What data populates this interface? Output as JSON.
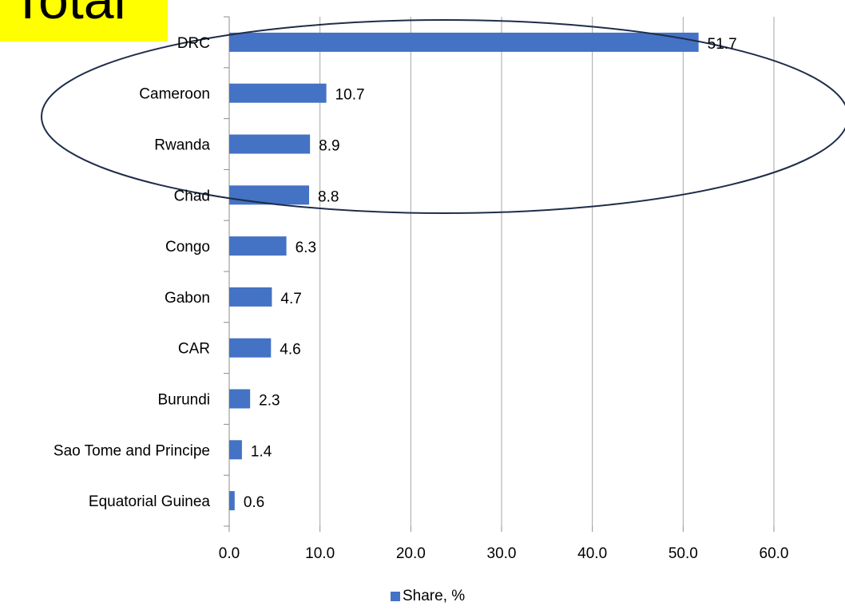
{
  "callout": {
    "text": "Total"
  },
  "chart_data": {
    "type": "bar",
    "orientation": "horizontal",
    "categories": [
      "DRC",
      "Cameroon",
      "Rwanda",
      "Chad",
      "Congo",
      "Gabon",
      "CAR",
      "Burundi",
      "Sao Tome and Principe",
      "Equatorial Guinea"
    ],
    "series": [
      {
        "name": "Share, %",
        "values": [
          51.7,
          10.7,
          8.9,
          8.8,
          6.3,
          4.7,
          4.6,
          2.3,
          1.4,
          0.6
        ]
      }
    ],
    "xlim": [
      0,
      60
    ],
    "xticks": [
      0,
      10,
      20,
      30,
      40,
      50,
      60
    ],
    "xtick_labels": [
      "0.0",
      "10.0",
      "20.0",
      "30.0",
      "40.0",
      "50.0",
      "60.0"
    ],
    "data_labels": [
      "51.7",
      "10.7",
      "8.9",
      "8.8",
      "6.3",
      "4.7",
      "4.6",
      "2.3",
      "1.4",
      "0.6"
    ],
    "grid": "vertical",
    "legend": "bottom",
    "bar_color": "#4472c4",
    "annotation_color": "#1f2d4a"
  }
}
